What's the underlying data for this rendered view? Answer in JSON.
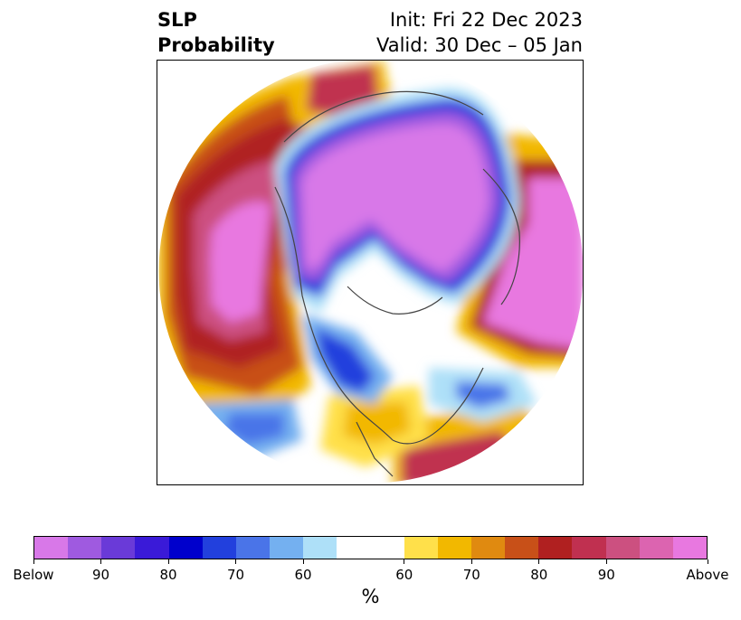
{
  "title": {
    "left_line1": "SLP",
    "left_line2": "Probability",
    "init": "Init: Fri 22 Dec 2023",
    "valid": "Valid: 30 Dec – 05 Jan"
  },
  "colorbar": {
    "label": "%",
    "colors": [
      "#d878e8",
      "#9f5ae0",
      "#6a3ad8",
      "#3a1ad8",
      "#0000cc",
      "#2240dd",
      "#4a74e8",
      "#74b0f0",
      "#aee0f8",
      "#ffffff",
      "#ffe04a",
      "#f2b800",
      "#e08a10",
      "#c85018",
      "#b02020",
      "#c03050",
      "#cc5080",
      "#dc64b0",
      "#e878e0"
    ],
    "segment_widths": [
      1,
      1,
      1,
      1,
      1,
      1,
      1,
      1,
      1,
      2,
      1,
      1,
      1,
      1,
      1,
      1,
      1,
      1,
      1
    ],
    "tick_labels": [
      "Below",
      "90",
      "80",
      "70",
      "60",
      "60",
      "70",
      "80",
      "90",
      "Above"
    ]
  }
}
